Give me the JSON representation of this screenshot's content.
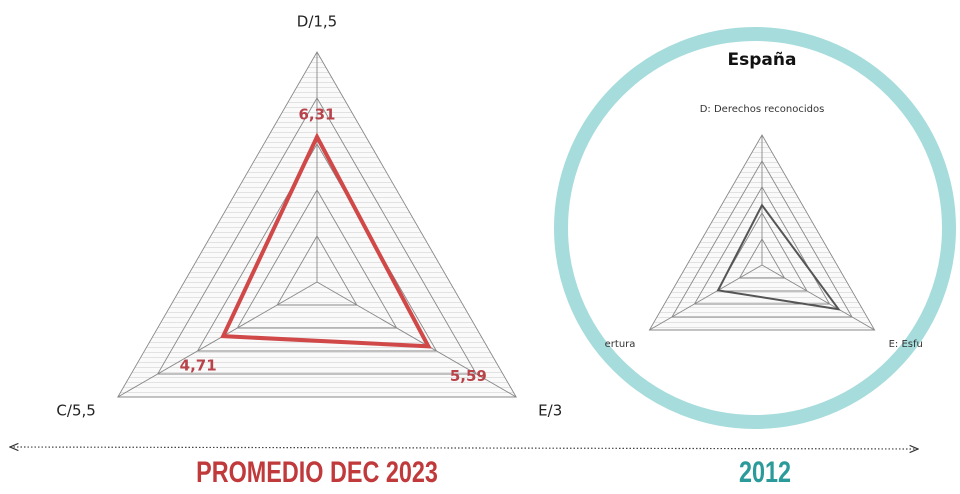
{
  "chart_data": [
    {
      "type": "radar",
      "categories": [
        "D/1,5",
        "E/3",
        "C/5,5"
      ],
      "series": [
        {
          "name": null,
          "color": "#d04848",
          "values": [
            6.31,
            5.59,
            4.71
          ],
          "value_labels": [
            "6,31",
            "5,59",
            "4,71"
          ]
        }
      ],
      "rlim": [
        0,
        10
      ],
      "rticks": [
        2,
        4,
        6,
        8,
        10
      ],
      "grid": true,
      "caption": "PROMEDIO DEC 2023",
      "caption_color": "#c0393b"
    },
    {
      "type": "radar",
      "title": "España",
      "categories": [
        "D: Derechos reconocidos",
        "E: Esfu",
        "ertura"
      ],
      "series": [
        {
          "name": null,
          "color": "#555555",
          "values": [
            4.6,
            6.8,
            3.9
          ]
        }
      ],
      "rlim": [
        0,
        10
      ],
      "rticks": [
        2,
        4,
        6,
        8,
        10
      ],
      "grid": true,
      "caption": "2012",
      "caption_color": "#2a9a9a"
    }
  ]
}
